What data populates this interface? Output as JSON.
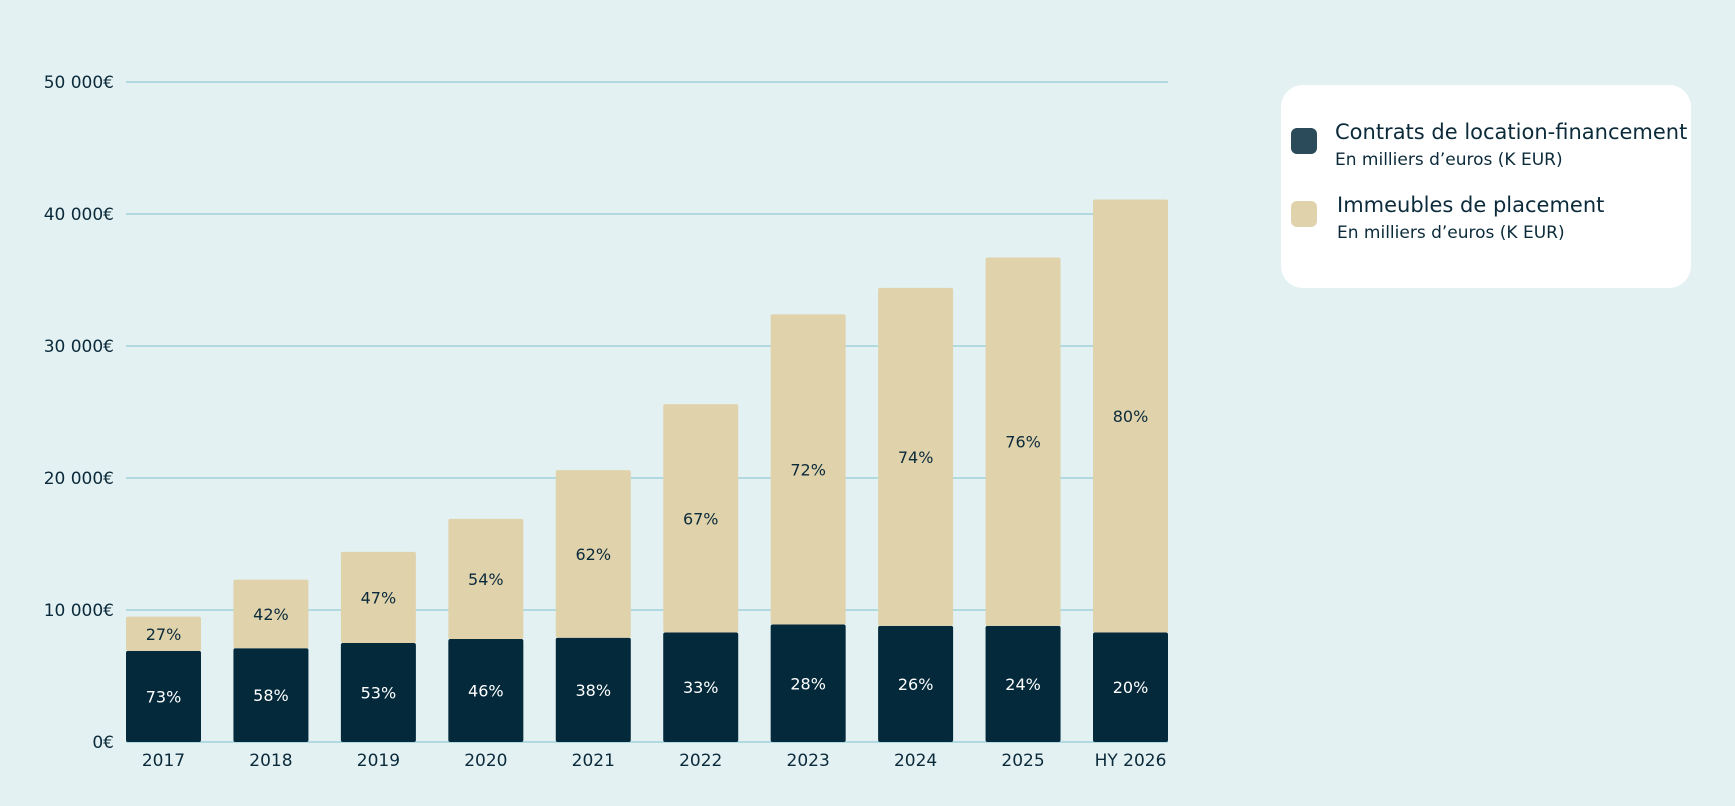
{
  "chart_data": {
    "type": "bar",
    "stacked": true,
    "categories": [
      "2017",
      "2018",
      "2019",
      "2020",
      "2021",
      "2022",
      "2023",
      "2024",
      "2025",
      "HY 2026"
    ],
    "ylim": [
      0,
      50000
    ],
    "y_ticks": [
      0,
      10000,
      20000,
      30000,
      40000,
      50000
    ],
    "y_tick_labels": [
      "0€",
      "10 000€",
      "20 000€",
      "30 000€",
      "40 000€",
      "50 000€"
    ],
    "grid": "horizontal",
    "legend_position": "right",
    "series": [
      {
        "name": "Contrats de location-financement",
        "subtitle": "En milliers d’euros (K EUR)",
        "color": "#03293a",
        "values": [
          6900,
          7100,
          7500,
          7800,
          7900,
          8300,
          8900,
          8800,
          8800,
          8300
        ],
        "labels": [
          "73%",
          "58%",
          "53%",
          "46%",
          "38%",
          "33%",
          "28%",
          "26%",
          "24%",
          "20%"
        ]
      },
      {
        "name": "Immeubles de placement",
        "subtitle": "En milliers d’euros (K EUR)",
        "color": "#e0d3ac",
        "values": [
          2600,
          5200,
          6900,
          9100,
          12700,
          17300,
          23500,
          25600,
          27900,
          32800
        ],
        "labels": [
          "27%",
          "42%",
          "47%",
          "54%",
          "62%",
          "67%",
          "72%",
          "74%",
          "76%",
          "80%"
        ]
      }
    ]
  },
  "legend": {
    "items": [
      {
        "title": "Contrats de location-financement",
        "subtitle": "En milliers d’euros (K EUR)",
        "color": "#2b4b5a"
      },
      {
        "title": "Immeubles de placement",
        "subtitle": "En milliers d’euros (K EUR)",
        "color": "#e0d3ac"
      }
    ]
  }
}
